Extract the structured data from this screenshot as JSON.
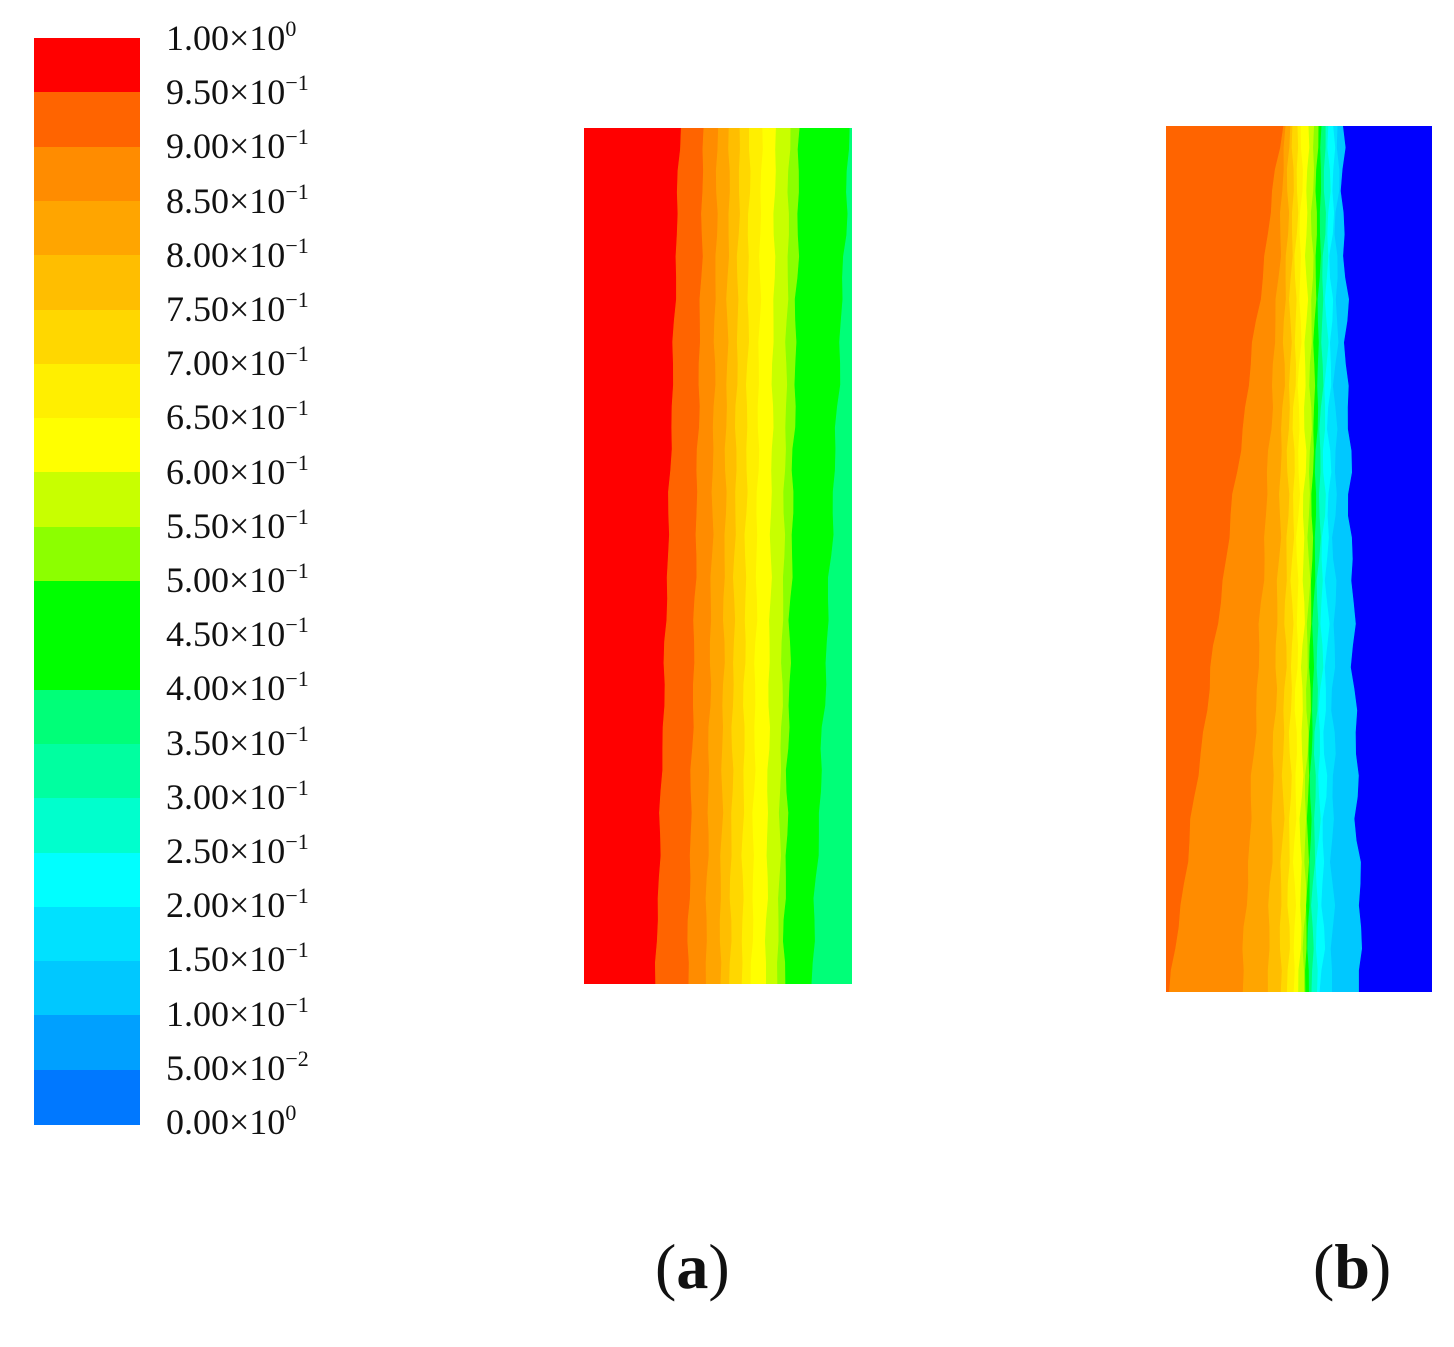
{
  "chart_data": {
    "type": "heatmap",
    "legend": {
      "placement": "left",
      "levels": [
        {
          "mantissa": "1.00",
          "exponent": "0",
          "value": 1.0,
          "color": "#ff0000"
        },
        {
          "mantissa": "9.50",
          "exponent": "−1",
          "value": 0.95,
          "color": "#ff6400"
        },
        {
          "mantissa": "9.00",
          "exponent": "−1",
          "value": 0.9,
          "color": "#ff8c00"
        },
        {
          "mantissa": "8.50",
          "exponent": "−1",
          "value": 0.85,
          "color": "#ffa500"
        },
        {
          "mantissa": "8.00",
          "exponent": "−1",
          "value": 0.8,
          "color": "#ffbe00"
        },
        {
          "mantissa": "7.50",
          "exponent": "−1",
          "value": 0.75,
          "color": "#ffd700"
        },
        {
          "mantissa": "7.00",
          "exponent": "−1",
          "value": 0.7,
          "color": "#ffef00"
        },
        {
          "mantissa": "6.50",
          "exponent": "−1",
          "value": 0.65,
          "color": "#ffff00"
        },
        {
          "mantissa": "6.00",
          "exponent": "−1",
          "value": 0.6,
          "color": "#c8ff00"
        },
        {
          "mantissa": "5.50",
          "exponent": "−1",
          "value": 0.55,
          "color": "#8cff00"
        },
        {
          "mantissa": "5.00",
          "exponent": "−1",
          "value": 0.5,
          "color": "#00ff00"
        },
        {
          "mantissa": "4.50",
          "exponent": "−1",
          "value": 0.45,
          "color": "#00ff00"
        },
        {
          "mantissa": "4.00",
          "exponent": "−1",
          "value": 0.4,
          "color": "#00ff78"
        },
        {
          "mantissa": "3.50",
          "exponent": "−1",
          "value": 0.35,
          "color": "#00ffa0"
        },
        {
          "mantissa": "3.00",
          "exponent": "−1",
          "value": 0.3,
          "color": "#00ffcd"
        },
        {
          "mantissa": "2.50",
          "exponent": "−1",
          "value": 0.25,
          "color": "#00ffff"
        },
        {
          "mantissa": "2.00",
          "exponent": "−1",
          "value": 0.2,
          "color": "#00e1ff"
        },
        {
          "mantissa": "1.50",
          "exponent": "−1",
          "value": 0.15,
          "color": "#00c8ff"
        },
        {
          "mantissa": "1.00",
          "exponent": "−1",
          "value": 0.1,
          "color": "#00a0ff"
        },
        {
          "mantissa": "5.00",
          "exponent": "−2",
          "value": 0.05,
          "color": "#0078ff"
        },
        {
          "mantissa": "0.00",
          "exponent": "0",
          "value": 0.0,
          "color": "#0000ff"
        }
      ]
    },
    "panels": [
      {
        "label": "a",
        "bands_left_to_right": [
          1.0,
          0.95,
          0.9,
          0.85,
          0.8,
          0.75,
          0.7,
          0.65,
          0.6,
          0.55,
          0.5,
          0.4
        ]
      },
      {
        "label": "b",
        "bands_left_to_right": [
          0.95,
          0.9,
          0.85,
          0.8,
          0.75,
          0.7,
          0.65,
          0.6,
          0.55,
          0.5,
          0.4,
          0.3,
          0.25,
          0.2,
          0.15,
          0.0
        ]
      }
    ]
  }
}
